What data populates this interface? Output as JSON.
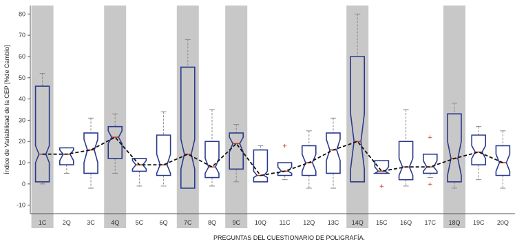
{
  "chart_data": {
    "type": "boxplot",
    "title": "",
    "xlabel": "PREGUNTAS DEL CUESTIONARIO DE POLIGRAFÍA.",
    "ylabel": "Índice de Variabilidad de la CEP [%de Cambio]",
    "ylim": [
      -14,
      84
    ],
    "yticks": [
      -10,
      0,
      10,
      20,
      30,
      40,
      50,
      60,
      70,
      80
    ],
    "grid": false,
    "legend": "none",
    "trend_line": "dashed line connecting medians",
    "colors": {
      "box": "#2b3a8c",
      "median": "#c0392b",
      "whisker": "#8a8a8a",
      "outlier": "#c0392b",
      "trend": "#111111",
      "highlight_band": "#c8c8c8",
      "label_control": "#2b3a8c",
      "label_relevant": "#b03030"
    },
    "categories": [
      "1C",
      "2Q",
      "3C",
      "4Q",
      "5C",
      "6Q",
      "7C",
      "8Q",
      "9C",
      "10Q",
      "11C",
      "12Q",
      "13C",
      "14Q",
      "15C",
      "16Q",
      "17C",
      "18Q",
      "19C",
      "20Q"
    ],
    "highlighted": [
      "1C",
      "4Q",
      "7C",
      "9C",
      "14Q",
      "18Q"
    ],
    "boxes": [
      {
        "label": "1C",
        "min": 0,
        "q1": 1,
        "median": 14,
        "q3": 46,
        "max": 52,
        "notch_low": 10,
        "notch_high": 18,
        "outliers": []
      },
      {
        "label": "2Q",
        "min": 5,
        "q1": 9,
        "median": 14,
        "q3": 17,
        "max": 17,
        "notch_low": 11,
        "notch_high": 16,
        "outliers": []
      },
      {
        "label": "3C",
        "min": -2,
        "q1": 5,
        "median": 16,
        "q3": 24,
        "max": 31,
        "notch_low": 10,
        "notch_high": 21,
        "outliers": []
      },
      {
        "label": "4Q",
        "min": 5,
        "q1": 12,
        "median": 22,
        "q3": 27,
        "max": 33,
        "notch_low": 19,
        "notch_high": 25,
        "outliers": []
      },
      {
        "label": "5C",
        "min": -1,
        "q1": 6,
        "median": 9,
        "q3": 12,
        "max": 12,
        "notch_low": 7,
        "notch_high": 11,
        "outliers": []
      },
      {
        "label": "6Q",
        "min": -1,
        "q1": 4,
        "median": 9,
        "q3": 23,
        "max": 34,
        "notch_low": 5,
        "notch_high": 14,
        "outliers": []
      },
      {
        "label": "7C",
        "min": -2,
        "q1": -2,
        "median": 14,
        "q3": 55,
        "max": 68,
        "notch_low": 7,
        "notch_high": 21,
        "outliers": []
      },
      {
        "label": "8Q",
        "min": -1,
        "q1": 3,
        "median": 8,
        "q3": 20,
        "max": 35,
        "notch_low": 5,
        "notch_high": 12,
        "outliers": []
      },
      {
        "label": "9C",
        "min": 1,
        "q1": 7,
        "median": 19,
        "q3": 24,
        "max": 28,
        "notch_low": 15,
        "notch_high": 22,
        "outliers": []
      },
      {
        "label": "10Q",
        "min": 1,
        "q1": 1,
        "median": 4,
        "q3": 16,
        "max": 18,
        "notch_low": 3,
        "notch_high": 6,
        "outliers": []
      },
      {
        "label": "11C",
        "min": 2,
        "q1": 4,
        "median": 6,
        "q3": 10,
        "max": 10,
        "notch_low": 5,
        "notch_high": 8,
        "outliers": [
          18
        ]
      },
      {
        "label": "12Q",
        "min": -2,
        "q1": 4,
        "median": 10,
        "q3": 18,
        "max": 25,
        "notch_low": 6,
        "notch_high": 14,
        "outliers": []
      },
      {
        "label": "13C",
        "min": -2,
        "q1": 5,
        "median": 16,
        "q3": 24,
        "max": 31,
        "notch_low": 11,
        "notch_high": 21,
        "outliers": []
      },
      {
        "label": "14Q",
        "min": 1,
        "q1": 1,
        "median": 20,
        "q3": 60,
        "max": 80,
        "notch_low": 7,
        "notch_high": 33,
        "outliers": []
      },
      {
        "label": "15C",
        "min": 5,
        "q1": 5,
        "median": 6,
        "q3": 11,
        "max": 11,
        "notch_low": 5,
        "notch_high": 8,
        "outliers": [
          -1
        ]
      },
      {
        "label": "16Q",
        "min": -1,
        "q1": 2,
        "median": 8,
        "q3": 20,
        "max": 35,
        "notch_low": 4,
        "notch_high": 12,
        "outliers": []
      },
      {
        "label": "17C",
        "min": 3,
        "q1": 5,
        "median": 8,
        "q3": 14,
        "max": 14,
        "notch_low": 6,
        "notch_high": 11,
        "outliers": [
          22,
          0
        ]
      },
      {
        "label": "18Q",
        "min": -2,
        "q1": 1,
        "median": 12,
        "q3": 33,
        "max": 38,
        "notch_low": 4,
        "notch_high": 20,
        "outliers": []
      },
      {
        "label": "19C",
        "min": 2,
        "q1": 9,
        "median": 15,
        "q3": 23,
        "max": 27,
        "notch_low": 12,
        "notch_high": 18,
        "outliers": []
      },
      {
        "label": "20Q",
        "min": -2,
        "q1": 4,
        "median": 10,
        "q3": 18,
        "max": 25,
        "notch_low": 6,
        "notch_high": 14,
        "outliers": []
      }
    ]
  }
}
